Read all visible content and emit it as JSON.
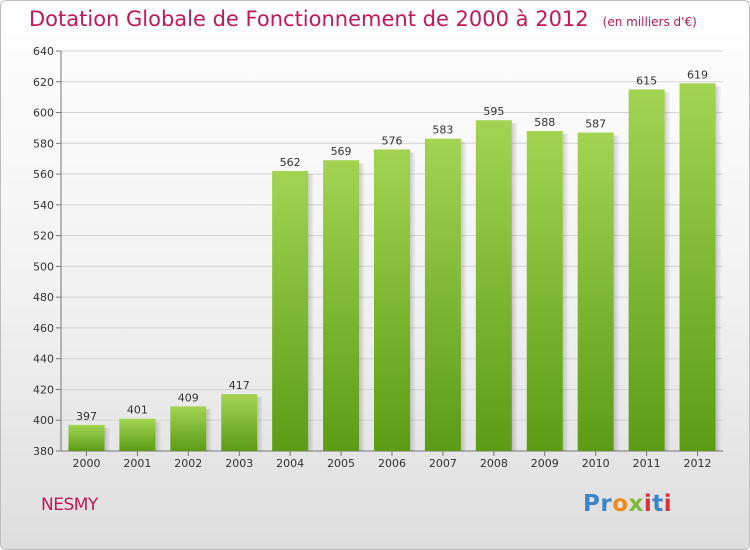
{
  "title": "Dotation Globale de Fonctionnement de 2000 à 2012",
  "unit_note": "(en milliers d'€)",
  "commune": "NESMY",
  "logo": {
    "text": "Proxiti",
    "colors": [
      "#3a86c8",
      "#f08a1c",
      "#7fb83a",
      "#d6343a"
    ]
  },
  "colors": {
    "title": "#c0185a",
    "bar_light": "#9fd14f",
    "bar_dark": "#5e9e16"
  },
  "chart_data": {
    "type": "bar",
    "categories": [
      "2000",
      "2001",
      "2002",
      "2003",
      "2004",
      "2005",
      "2006",
      "2007",
      "2008",
      "2009",
      "2010",
      "2011",
      "2012"
    ],
    "values": [
      397,
      401,
      409,
      417,
      562,
      569,
      576,
      583,
      595,
      588,
      587,
      615,
      619
    ],
    "title": "Dotation Globale de Fonctionnement de 2000 à 2012",
    "ylabel": "",
    "xlabel": "",
    "ylim": [
      380,
      640
    ],
    "yticks": [
      380,
      400,
      420,
      440,
      460,
      480,
      500,
      520,
      540,
      560,
      580,
      600,
      620,
      640
    ],
    "grid": true,
    "legend": "none"
  }
}
